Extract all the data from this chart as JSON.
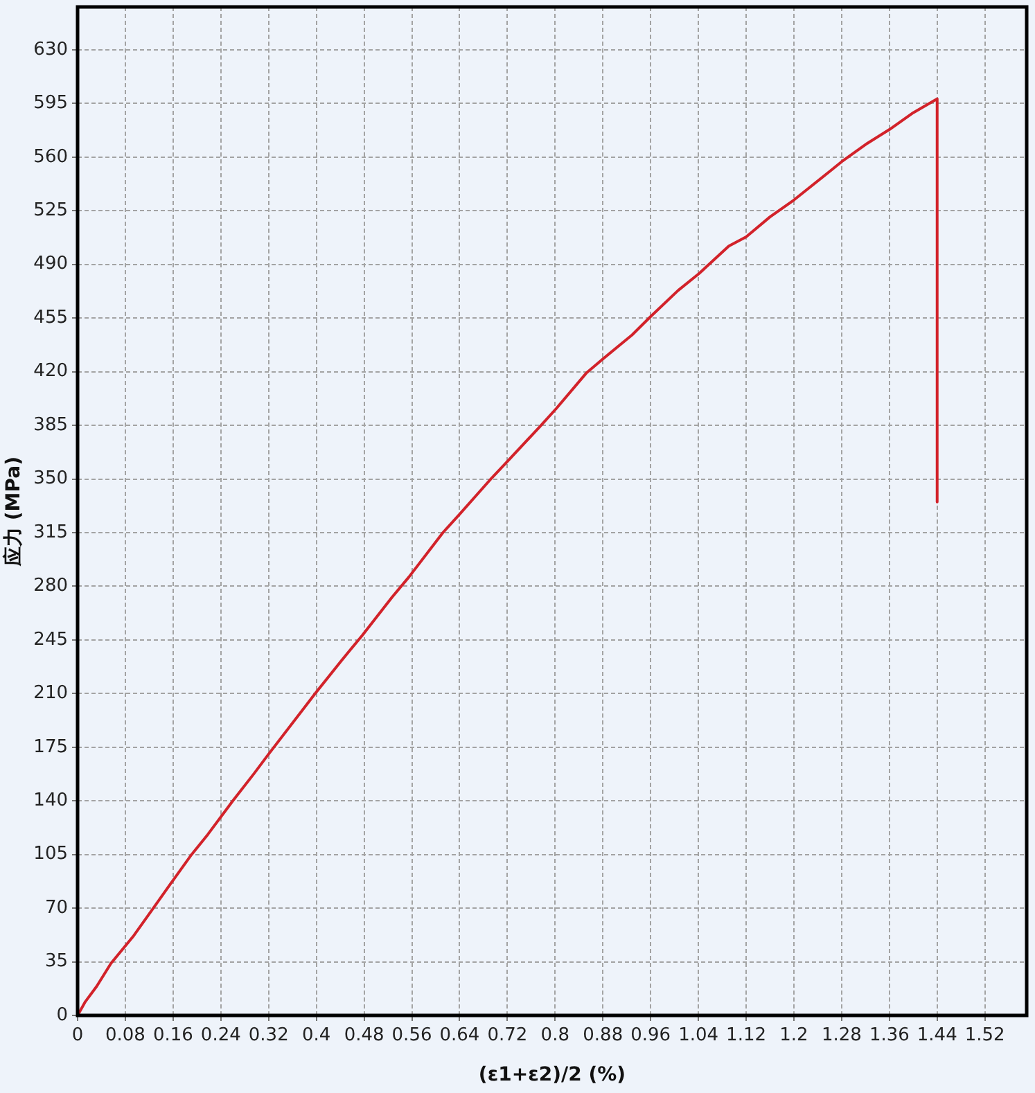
{
  "chart_data": {
    "type": "line",
    "xlabel": "(ε1+ε2)/2 (%)",
    "ylabel": "应力 (MPa)",
    "x": [
      0,
      0.013,
      0.032,
      0.056,
      0.094,
      0.125,
      0.156,
      0.191,
      0.218,
      0.26,
      0.296,
      0.319,
      0.398,
      0.443,
      0.477,
      0.527,
      0.555,
      0.612,
      0.64,
      0.69,
      0.719,
      0.774,
      0.802,
      0.852,
      0.879,
      0.929,
      0.96,
      1.006,
      1.041,
      1.091,
      1.12,
      1.16,
      1.2,
      1.261,
      1.28,
      1.323,
      1.36,
      1.4,
      1.44,
      1.44
    ],
    "series": [
      {
        "color": "#d2222a",
        "values": [
          0,
          9,
          19,
          34,
          52,
          69,
          86,
          105,
          118,
          140,
          158,
          170,
          210,
          232,
          248,
          273,
          286,
          315,
          327,
          349,
          361,
          384,
          396,
          419,
          428,
          444,
          456,
          473,
          484,
          502,
          508,
          521,
          532,
          551,
          557,
          569,
          578,
          589,
          598,
          335
        ]
      }
    ],
    "xlim": [
      0,
      1.59
    ],
    "ylim": [
      0,
      658
    ],
    "xticks": [
      0,
      0.08,
      0.16,
      0.24,
      0.32,
      0.4,
      0.48,
      0.56,
      0.64,
      0.72,
      0.8,
      0.88,
      0.96,
      1.04,
      1.12,
      1.2,
      1.28,
      1.36,
      1.44,
      1.52
    ],
    "yticks": [
      0,
      35,
      70,
      105,
      140,
      175,
      210,
      245,
      280,
      315,
      350,
      385,
      420,
      455,
      490,
      525,
      560,
      595,
      630
    ],
    "grid": true,
    "marker": "none",
    "line_style": "solid"
  }
}
